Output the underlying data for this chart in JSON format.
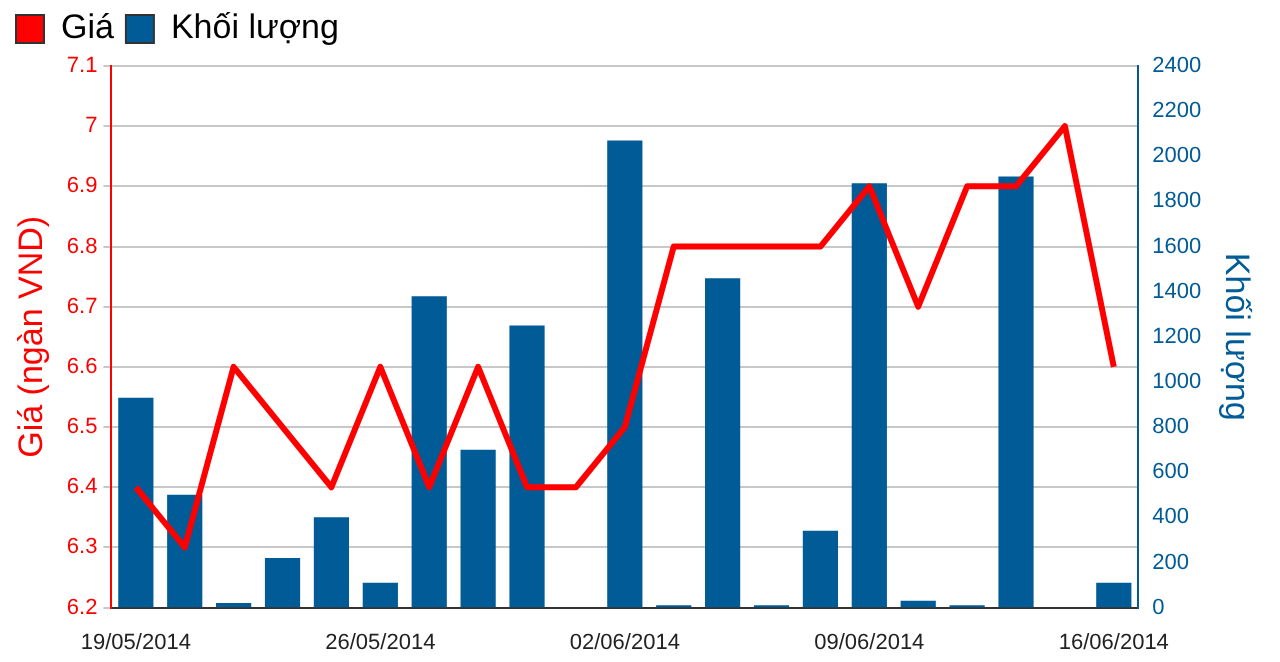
{
  "chart_data": {
    "type": "bar",
    "ylabel": "Giá (ngàn VND)",
    "y2label": "Khối lượng",
    "categories": [
      "19/05/2014",
      null,
      null,
      null,
      null,
      "26/05/2014",
      null,
      null,
      null,
      null,
      "02/06/2014",
      null,
      null,
      null,
      null,
      "09/06/2014",
      null,
      null,
      null,
      null,
      "16/06/2014"
    ],
    "series": [
      {
        "name": "Giá",
        "type": "line",
        "axis": "y",
        "color": "#ff0000",
        "values": [
          6.4,
          6.3,
          6.6,
          6.5,
          6.4,
          6.6,
          6.4,
          6.6,
          6.4,
          6.4,
          6.5,
          6.8,
          6.8,
          6.8,
          6.8,
          6.9,
          6.7,
          6.9,
          6.9,
          7.0,
          6.6
        ]
      },
      {
        "name": "Khối lượng",
        "axis": "y2",
        "color": "#005b96",
        "values": [
          930,
          500,
          20,
          220,
          400,
          110,
          1380,
          700,
          1250,
          0,
          2070,
          10,
          1460,
          10,
          340,
          1880,
          30,
          10,
          1910,
          0,
          110
        ]
      }
    ],
    "ylim": [
      6.2,
      7.1
    ],
    "yticks": [
      6.2,
      6.3,
      6.4,
      6.5,
      6.6,
      6.7,
      6.8,
      6.9,
      7,
      7.1
    ],
    "y2lim": [
      0,
      2400
    ],
    "y2ticks": [
      0,
      200,
      400,
      600,
      800,
      1000,
      1200,
      1400,
      1600,
      1800,
      2000,
      2200,
      2400
    ],
    "grid": "y",
    "legend": "top left",
    "marker": "none"
  }
}
